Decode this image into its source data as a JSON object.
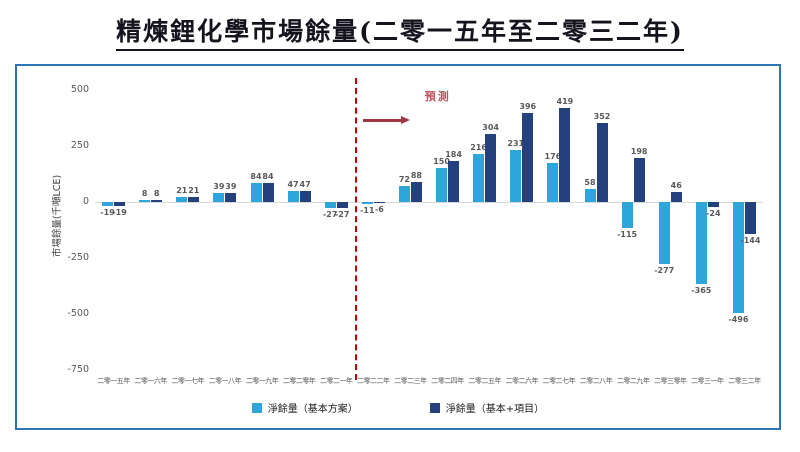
{
  "title": "精煉鋰化學市場餘量(二零一五年至二零三二年)",
  "colors": {
    "border": "#2e74b5",
    "series_base": "#2ea6dc",
    "series_project": "#24417e",
    "forecast_line": "#c00000",
    "forecast_label": "#c0555f",
    "forecast_arrow": "#9e3944",
    "label_text": "#595959"
  },
  "forecast": {
    "label": "預測",
    "boundary_index": 7
  },
  "legend": {
    "items": [
      {
        "label": "淨餘量（基本方案）"
      },
      {
        "label": "淨餘量（基本+項目）"
      }
    ]
  },
  "chart_data": {
    "type": "bar",
    "title": "精煉鋰化學市場餘量(二零一五年至二零三二年)",
    "xlabel": "",
    "ylabel": "市場餘量(千噸LCE)",
    "ylim": [
      -750,
      500
    ],
    "yticks": [
      500,
      250,
      0,
      -250,
      -500,
      -750
    ],
    "grid": false,
    "legend_position": "bottom",
    "categories": [
      "二零一五年",
      "二零一六年",
      "二零一七年",
      "二零一八年",
      "二零一九年",
      "二零二零年",
      "二零二一年",
      "二零二二年",
      "二零二三年",
      "二零二四年",
      "二零二五年",
      "二零二六年",
      "二零二七年",
      "二零二八年",
      "二零二九年",
      "二零三零年",
      "二零三一年",
      "二零三二年"
    ],
    "series": [
      {
        "name": "淨餘量（基本方案）",
        "color": "#2ea6dc",
        "values": [
          -19,
          8,
          21,
          39,
          84,
          47,
          -27,
          -11,
          72,
          150,
          216,
          231,
          176,
          58,
          -115,
          -277,
          -365,
          -496
        ]
      },
      {
        "name": "淨餘量（基本+項目）",
        "color": "#24417e",
        "values": [
          -19,
          8,
          21,
          39,
          84,
          47,
          -27,
          -6,
          88,
          184,
          304,
          396,
          419,
          352,
          198,
          46,
          -24,
          -144
        ]
      }
    ],
    "annotations": [
      {
        "text": "預測",
        "position": "right-of-forecast-line"
      }
    ]
  }
}
